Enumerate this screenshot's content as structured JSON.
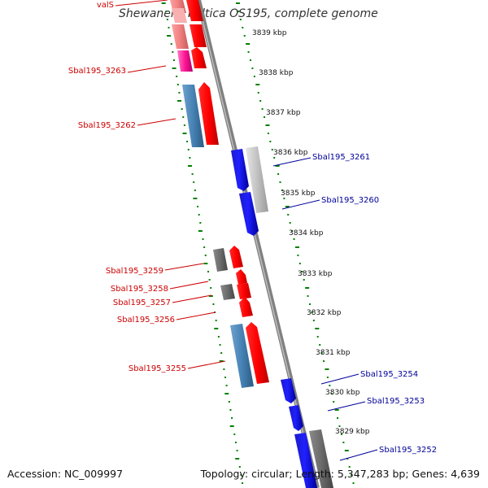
{
  "title": "Shewanella baltica OS195, complete genome",
  "accession": "Accession: NC_009997",
  "summary": "Topology: circular; Length: 5,347,283 bp; Genes: 4,639",
  "colors": {
    "forward_gene": "#ff0000",
    "reverse_gene": "#0000ff",
    "cds": "#4682b4",
    "rna": "#ff1493",
    "pseudo": "#808080",
    "backbone": "#808080",
    "ticks": "#008000",
    "left_labels": "#cc0000",
    "right_labels": "#000099"
  },
  "kbp_ticks": [
    "3839 kbp",
    "3838 kbp",
    "3837 kbp",
    "3836 kbp",
    "3835 kbp",
    "3834 kbp",
    "3833 kbp",
    "3832 kbp",
    "3831 kbp",
    "3830 kbp",
    "3829 kbp"
  ],
  "left_genes": [
    "valS",
    "Sbal195_3263",
    "Sbal195_3262",
    "Sbal195_3259",
    "Sbal195_3258",
    "Sbal195_3257",
    "Sbal195_3256",
    "Sbal195_3255"
  ],
  "right_genes": [
    "Sbal195_3261",
    "Sbal195_3260",
    "Sbal195_3254",
    "Sbal195_3253",
    "Sbal195_3252"
  ]
}
